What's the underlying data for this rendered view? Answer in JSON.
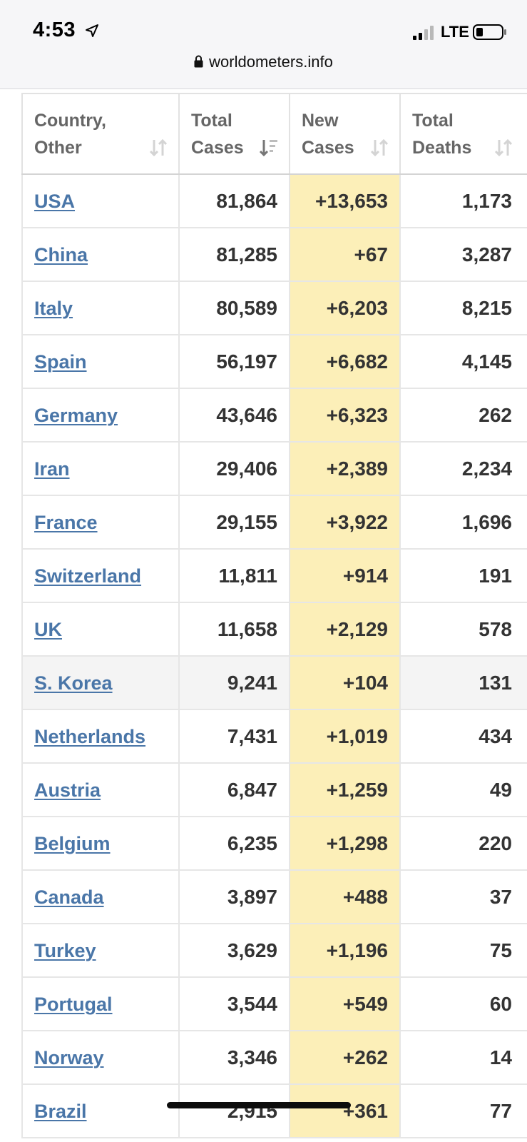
{
  "status_bar": {
    "time": "4:53",
    "network": "LTE",
    "icons": [
      "location-arrow-icon",
      "signal-icon",
      "battery-icon"
    ]
  },
  "url_bar": {
    "url": "worldometers.info",
    "icon": "lock-icon"
  },
  "table": {
    "headers": [
      {
        "label": "Country,\nOther",
        "sort": "unsorted"
      },
      {
        "label": "Total\nCases",
        "sort": "descending"
      },
      {
        "label": "New\nCases",
        "sort": "unsorted"
      },
      {
        "label": "Total\nDeaths",
        "sort": "unsorted"
      }
    ],
    "rows": [
      {
        "country": "USA",
        "total_cases": "81,864",
        "new_cases": "+13,653",
        "total_deaths": "1,173"
      },
      {
        "country": "China",
        "total_cases": "81,285",
        "new_cases": "+67",
        "total_deaths": "3,287"
      },
      {
        "country": "Italy",
        "total_cases": "80,589",
        "new_cases": "+6,203",
        "total_deaths": "8,215"
      },
      {
        "country": "Spain",
        "total_cases": "56,197",
        "new_cases": "+6,682",
        "total_deaths": "4,145"
      },
      {
        "country": "Germany",
        "total_cases": "43,646",
        "new_cases": "+6,323",
        "total_deaths": "262"
      },
      {
        "country": "Iran",
        "total_cases": "29,406",
        "new_cases": "+2,389",
        "total_deaths": "2,234"
      },
      {
        "country": "France",
        "total_cases": "29,155",
        "new_cases": "+3,922",
        "total_deaths": "1,696"
      },
      {
        "country": "Switzerland",
        "total_cases": "11,811",
        "new_cases": "+914",
        "total_deaths": "191"
      },
      {
        "country": "UK",
        "total_cases": "11,658",
        "new_cases": "+2,129",
        "total_deaths": "578"
      },
      {
        "country": "S. Korea",
        "total_cases": "9,241",
        "new_cases": "+104",
        "total_deaths": "131"
      },
      {
        "country": "Netherlands",
        "total_cases": "7,431",
        "new_cases": "+1,019",
        "total_deaths": "434"
      },
      {
        "country": "Austria",
        "total_cases": "6,847",
        "new_cases": "+1,259",
        "total_deaths": "49"
      },
      {
        "country": "Belgium",
        "total_cases": "6,235",
        "new_cases": "+1,298",
        "total_deaths": "220"
      },
      {
        "country": "Canada",
        "total_cases": "3,897",
        "new_cases": "+488",
        "total_deaths": "37"
      },
      {
        "country": "Turkey",
        "total_cases": "3,629",
        "new_cases": "+1,196",
        "total_deaths": "75"
      },
      {
        "country": "Portugal",
        "total_cases": "3,544",
        "new_cases": "+549",
        "total_deaths": "60"
      },
      {
        "country": "Norway",
        "total_cases": "3,346",
        "new_cases": "+262",
        "total_deaths": "14"
      },
      {
        "country": "Brazil",
        "total_cases": "2,915",
        "new_cases": "+361",
        "total_deaths": "77"
      }
    ],
    "highlighted_row": "S. Korea"
  },
  "colors": {
    "link": "#4a76a8",
    "new_cases_bg": "#fcefb8",
    "highlight_row_bg": "#f4f4f4",
    "header_text": "#666666"
  }
}
